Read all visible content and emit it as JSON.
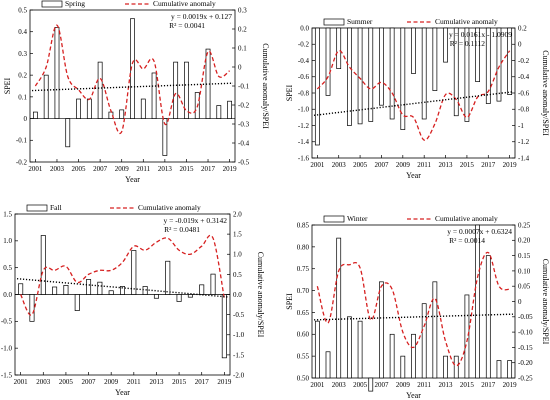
{
  "chart_data": [
    {
      "type": "bar+line",
      "legend": {
        "bar_label": "Spring",
        "line_label": "Cumulative anomaly"
      },
      "xlabel": "Year",
      "ylabel": "SPEI",
      "y2label": "Cumulative anomaly/SPEI",
      "equation": "y = 0.0019x + 0.127",
      "r2": "R² = 0.0041",
      "x_ticks": [
        "2001",
        "2003",
        "2005",
        "2007",
        "2009",
        "2011",
        "2013",
        "2015",
        "2017",
        "2019"
      ],
      "ylim": [
        -0.2,
        0.5
      ],
      "y_ticks": [
        "-0.2",
        "-0.1",
        "0",
        "0.1",
        "0.2",
        "0.3",
        "0.4",
        "0.5"
      ],
      "y2lim": [
        -0.5,
        0.3
      ],
      "y2_ticks": [
        "-0.5",
        "-0.4",
        "-0.3",
        "-0.2",
        "-0.1",
        "0",
        "0.1",
        "0.2",
        "0.3"
      ],
      "years": [
        2001,
        2002,
        2003,
        2004,
        2005,
        2006,
        2007,
        2008,
        2009,
        2010,
        2011,
        2012,
        2013,
        2014,
        2015,
        2016,
        2017,
        2018,
        2019
      ],
      "values": [
        0.03,
        0.2,
        0.42,
        -0.13,
        0.09,
        0.09,
        0.26,
        0.03,
        0.04,
        0.46,
        0.09,
        0.21,
        -0.17,
        0.26,
        0.26,
        0.12,
        0.32,
        0.06,
        0.08
      ],
      "cumulative": [
        -0.1,
        0.0,
        0.22,
        -0.05,
        -0.12,
        -0.17,
        -0.06,
        -0.23,
        -0.34,
        0.02,
        -0.01,
        0.03,
        -0.3,
        -0.14,
        -0.23,
        -0.21,
        0.08,
        -0.05,
        -0.02
      ],
      "trend": [
        0.129,
        0.163
      ]
    },
    {
      "type": "bar+line",
      "legend": {
        "bar_label": "Summer",
        "line_label": "Cumulative anomaly"
      },
      "xlabel": "Year",
      "ylabel": "SPEI",
      "y2label": "Cumulative anomaly/SPEI",
      "equation": "y = 0.0161x - 1.0909",
      "r2": "R² = 0.1112",
      "x_ticks": [
        "2001",
        "2003",
        "2005",
        "2007",
        "2009",
        "2011",
        "2013",
        "2015",
        "2017",
        "2019"
      ],
      "ylim": [
        -1.6,
        0.0
      ],
      "y_ticks": [
        "-1.6",
        "-1.4",
        "-1.2",
        "-1.0",
        "-0.8",
        "-0.6",
        "-0.4",
        "-0.2",
        "0.0"
      ],
      "y2lim": [
        -1.4,
        0.2
      ],
      "y2_ticks": [
        "-1.4",
        "-1.2",
        "-1",
        "-0.8",
        "-0.6",
        "-0.4",
        "-0.2",
        "0",
        "0.2"
      ],
      "years": [
        2001,
        2002,
        2003,
        2004,
        2005,
        2006,
        2007,
        2008,
        2009,
        2010,
        2011,
        2012,
        2013,
        2014,
        2015,
        2016,
        2017,
        2018,
        2019
      ],
      "values": [
        -1.44,
        -0.83,
        -0.5,
        -1.2,
        -1.18,
        -1.15,
        -0.95,
        -1.12,
        -1.25,
        -0.56,
        -1.12,
        -0.77,
        -0.42,
        -1.08,
        -1.15,
        -0.66,
        -0.93,
        -0.9,
        -0.82
      ],
      "cumulative": [
        -0.55,
        -0.4,
        -0.08,
        -0.28,
        -0.42,
        -0.55,
        -0.47,
        -0.6,
        -0.87,
        -0.9,
        -1.18,
        -0.98,
        -0.62,
        -0.68,
        -0.9,
        -0.65,
        -0.58,
        -0.28,
        -0.08
      ],
      "trend": [
        -1.075,
        -0.785
      ]
    },
    {
      "type": "bar+line",
      "legend": {
        "bar_label": "Fall",
        "line_label": "Cumulative anomaly"
      },
      "xlabel": "Year",
      "ylabel": "SPEI",
      "y2label": "Cumulative anomaly/SPEI",
      "equation": "y = -0.019x + 0.3142",
      "r2": "R² = 0.0481",
      "x_ticks": [
        "2001",
        "2003",
        "2005",
        "2007",
        "2009",
        "2011",
        "2013",
        "2015",
        "2017",
        "2019"
      ],
      "ylim": [
        -1.5,
        1.5
      ],
      "y_ticks": [
        "-1.5",
        "-1.0",
        "-0.5",
        "0.0",
        "0.5",
        "1.0",
        "1.5"
      ],
      "y2lim": [
        -2.0,
        2.0
      ],
      "y2_ticks": [
        "-2.0",
        "-1.5",
        "-1.0",
        "-0.5",
        "0.0",
        "0.5",
        "1.0",
        "1.5",
        "2.0"
      ],
      "years": [
        2001,
        2002,
        2003,
        2004,
        2005,
        2006,
        2007,
        2008,
        2009,
        2010,
        2011,
        2012,
        2013,
        2014,
        2015,
        2016,
        2017,
        2018,
        2019
      ],
      "values": [
        0.2,
        -0.5,
        1.1,
        0.14,
        0.17,
        -0.3,
        0.28,
        0.23,
        0.07,
        0.15,
        0.82,
        0.15,
        -0.07,
        0.62,
        -0.13,
        -0.05,
        0.18,
        0.38,
        -1.18
      ],
      "cumulative": [
        0.0,
        -0.5,
        0.6,
        0.6,
        0.7,
        0.3,
        0.5,
        0.6,
        0.6,
        0.8,
        1.2,
        1.1,
        1.3,
        1.4,
        1.1,
        1.0,
        1.2,
        1.4,
        -0.1
      ],
      "trend": [
        0.295,
        -0.047
      ]
    },
    {
      "type": "bar+line",
      "legend": {
        "bar_label": "Winter",
        "line_label": "Cumulative anomaly"
      },
      "xlabel": "Year",
      "ylabel": "SPEI",
      "y2label": "Cumulative anomaly/SPEI",
      "equation": "y = 0.0007x + 0.6324",
      "r2": "R² = 0.0014",
      "x_ticks": [
        "2001",
        "2003",
        "2005",
        "2007",
        "2009",
        "2011",
        "2013",
        "2015",
        "2017",
        "2019"
      ],
      "ylim": [
        0.5,
        0.85
      ],
      "y_ticks": [
        "0.50",
        "0.55",
        "0.60",
        "0.65",
        "0.70",
        "0.75",
        "0.80",
        "0.85"
      ],
      "y2lim": [
        -0.25,
        0.25
      ],
      "y2_ticks": [
        "-0.25",
        "-0.20",
        "-0.15",
        "-0.10",
        "-0.05",
        "0",
        "0.05",
        "0.10",
        "0.15",
        "0.20",
        "0.25"
      ],
      "years": [
        2001,
        2002,
        2003,
        2004,
        2005,
        2006,
        2007,
        2008,
        2009,
        2010,
        2011,
        2012,
        2013,
        2014,
        2015,
        2016,
        2017,
        2018,
        2019
      ],
      "values": [
        0.63,
        0.56,
        0.82,
        0.64,
        0.63,
        0.47,
        0.72,
        0.6,
        0.55,
        0.6,
        0.67,
        0.72,
        0.55,
        0.55,
        0.69,
        0.85,
        0.78,
        0.54,
        0.54
      ],
      "cumulative": [
        0.05,
        -0.07,
        0.1,
        0.12,
        0.11,
        -0.06,
        0.05,
        0.04,
        -0.1,
        -0.15,
        -0.08,
        0.01,
        -0.13,
        -0.21,
        -0.13,
        0.08,
        0.16,
        0.05,
        0.04
      ],
      "trend": [
        0.633,
        0.646
      ]
    }
  ]
}
